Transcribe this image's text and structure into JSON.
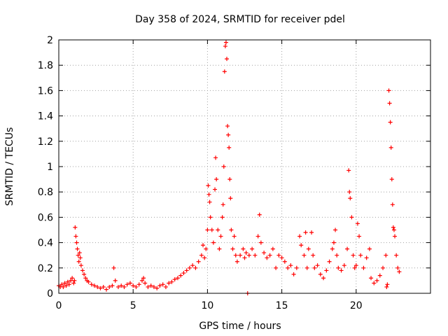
{
  "chart_data": {
    "type": "scatter",
    "title": "Day 358 of 2024, SRMTID for receiver pdel",
    "xlabel": "GPS time / hours",
    "ylabel": "SRMTID / TECUs",
    "xlim": [
      0,
      25
    ],
    "ylim": [
      0,
      2
    ],
    "xticks": [
      0,
      5,
      10,
      15,
      20
    ],
    "xtick_labels": [
      "0",
      "5",
      "10",
      "15",
      "20"
    ],
    "yticks": [
      0,
      0.2,
      0.4,
      0.6,
      0.8,
      1,
      1.2,
      1.4,
      1.6,
      1.8,
      2
    ],
    "ytick_labels": [
      "0",
      "0.2",
      "0.4",
      "0.6",
      "0.8",
      "1",
      "1.2",
      "1.4",
      "1.6",
      "1.8",
      "2"
    ],
    "grid": true,
    "marker": "+",
    "color": "#ff0000",
    "series": [
      {
        "name": "SRMTID",
        "points": [
          [
            0.0,
            0.06
          ],
          [
            0.1,
            0.05
          ],
          [
            0.2,
            0.07
          ],
          [
            0.3,
            0.05
          ],
          [
            0.4,
            0.08
          ],
          [
            0.5,
            0.06
          ],
          [
            0.6,
            0.09
          ],
          [
            0.7,
            0.07
          ],
          [
            0.8,
            0.1
          ],
          [
            0.9,
            0.12
          ],
          [
            1.0,
            0.08
          ],
          [
            1.05,
            0.1
          ],
          [
            1.1,
            0.52
          ],
          [
            1.15,
            0.45
          ],
          [
            1.2,
            0.4
          ],
          [
            1.25,
            0.35
          ],
          [
            1.3,
            0.3
          ],
          [
            1.35,
            0.25
          ],
          [
            1.4,
            0.32
          ],
          [
            1.45,
            0.28
          ],
          [
            1.5,
            0.22
          ],
          [
            1.6,
            0.18
          ],
          [
            1.7,
            0.15
          ],
          [
            1.8,
            0.12
          ],
          [
            1.9,
            0.1
          ],
          [
            2.0,
            0.09
          ],
          [
            2.2,
            0.07
          ],
          [
            2.4,
            0.06
          ],
          [
            2.6,
            0.05
          ],
          [
            2.8,
            0.04
          ],
          [
            3.0,
            0.05
          ],
          [
            3.2,
            0.03
          ],
          [
            3.4,
            0.05
          ],
          [
            3.6,
            0.06
          ],
          [
            3.7,
            0.2
          ],
          [
            3.8,
            0.1
          ],
          [
            4.0,
            0.05
          ],
          [
            4.2,
            0.06
          ],
          [
            4.4,
            0.05
          ],
          [
            4.6,
            0.07
          ],
          [
            4.8,
            0.08
          ],
          [
            5.0,
            0.06
          ],
          [
            5.2,
            0.05
          ],
          [
            5.4,
            0.07
          ],
          [
            5.6,
            0.1
          ],
          [
            5.7,
            0.12
          ],
          [
            5.8,
            0.08
          ],
          [
            6.0,
            0.05
          ],
          [
            6.2,
            0.06
          ],
          [
            6.4,
            0.05
          ],
          [
            6.6,
            0.04
          ],
          [
            6.8,
            0.06
          ],
          [
            7.0,
            0.07
          ],
          [
            7.2,
            0.05
          ],
          [
            7.4,
            0.08
          ],
          [
            7.6,
            0.09
          ],
          [
            7.8,
            0.11
          ],
          [
            8.0,
            0.12
          ],
          [
            8.2,
            0.14
          ],
          [
            8.4,
            0.16
          ],
          [
            8.6,
            0.18
          ],
          [
            8.8,
            0.2
          ],
          [
            9.0,
            0.22
          ],
          [
            9.2,
            0.2
          ],
          [
            9.4,
            0.25
          ],
          [
            9.6,
            0.3
          ],
          [
            9.7,
            0.38
          ],
          [
            9.8,
            0.28
          ],
          [
            9.9,
            0.35
          ],
          [
            10.0,
            0.5
          ],
          [
            10.05,
            0.85
          ],
          [
            10.1,
            0.78
          ],
          [
            10.15,
            0.72
          ],
          [
            10.2,
            0.6
          ],
          [
            10.3,
            0.5
          ],
          [
            10.4,
            0.4
          ],
          [
            10.5,
            0.82
          ],
          [
            10.55,
            1.07
          ],
          [
            10.6,
            0.9
          ],
          [
            10.7,
            0.5
          ],
          [
            10.8,
            0.35
          ],
          [
            10.9,
            0.45
          ],
          [
            11.0,
            0.6
          ],
          [
            11.05,
            0.7
          ],
          [
            11.1,
            1.0
          ],
          [
            11.15,
            1.75
          ],
          [
            11.2,
            1.95
          ],
          [
            11.25,
            1.98
          ],
          [
            11.3,
            1.85
          ],
          [
            11.35,
            1.32
          ],
          [
            11.4,
            1.25
          ],
          [
            11.45,
            1.15
          ],
          [
            11.5,
            0.9
          ],
          [
            11.55,
            0.75
          ],
          [
            11.6,
            0.5
          ],
          [
            11.7,
            0.35
          ],
          [
            11.8,
            0.45
          ],
          [
            11.9,
            0.3
          ],
          [
            12.0,
            0.25
          ],
          [
            12.2,
            0.3
          ],
          [
            12.4,
            0.35
          ],
          [
            12.5,
            0.28
          ],
          [
            12.6,
            0.32
          ],
          [
            12.7,
            0.0
          ],
          [
            12.8,
            0.3
          ],
          [
            13.0,
            0.35
          ],
          [
            13.2,
            0.3
          ],
          [
            13.4,
            0.45
          ],
          [
            13.5,
            0.62
          ],
          [
            13.6,
            0.4
          ],
          [
            13.8,
            0.32
          ],
          [
            14.0,
            0.28
          ],
          [
            14.2,
            0.3
          ],
          [
            14.4,
            0.35
          ],
          [
            14.6,
            0.2
          ],
          [
            14.8,
            0.3
          ],
          [
            15.0,
            0.28
          ],
          [
            15.2,
            0.25
          ],
          [
            15.4,
            0.2
          ],
          [
            15.6,
            0.22
          ],
          [
            15.8,
            0.15
          ],
          [
            16.0,
            0.2
          ],
          [
            16.2,
            0.45
          ],
          [
            16.3,
            0.38
          ],
          [
            16.5,
            0.3
          ],
          [
            16.6,
            0.48
          ],
          [
            16.7,
            0.2
          ],
          [
            16.8,
            0.35
          ],
          [
            17.0,
            0.48
          ],
          [
            17.1,
            0.3
          ],
          [
            17.2,
            0.2
          ],
          [
            17.4,
            0.22
          ],
          [
            17.6,
            0.15
          ],
          [
            17.8,
            0.12
          ],
          [
            18.0,
            0.18
          ],
          [
            18.2,
            0.25
          ],
          [
            18.4,
            0.35
          ],
          [
            18.5,
            0.4
          ],
          [
            18.6,
            0.5
          ],
          [
            18.7,
            0.3
          ],
          [
            18.8,
            0.2
          ],
          [
            19.0,
            0.18
          ],
          [
            19.2,
            0.22
          ],
          [
            19.4,
            0.35
          ],
          [
            19.5,
            0.97
          ],
          [
            19.55,
            0.8
          ],
          [
            19.6,
            0.75
          ],
          [
            19.7,
            0.6
          ],
          [
            19.8,
            0.3
          ],
          [
            19.9,
            0.2
          ],
          [
            20.0,
            0.22
          ],
          [
            20.1,
            0.55
          ],
          [
            20.2,
            0.45
          ],
          [
            20.3,
            0.3
          ],
          [
            20.5,
            0.2
          ],
          [
            20.7,
            0.28
          ],
          [
            20.9,
            0.35
          ],
          [
            21.0,
            0.12
          ],
          [
            21.2,
            0.08
          ],
          [
            21.4,
            0.1
          ],
          [
            21.6,
            0.14
          ],
          [
            21.8,
            0.2
          ],
          [
            22.0,
            0.3
          ],
          [
            22.05,
            0.05
          ],
          [
            22.1,
            0.07
          ],
          [
            22.2,
            1.6
          ],
          [
            22.25,
            1.5
          ],
          [
            22.3,
            1.35
          ],
          [
            22.35,
            1.15
          ],
          [
            22.4,
            0.9
          ],
          [
            22.45,
            0.7
          ],
          [
            22.5,
            0.52
          ],
          [
            22.55,
            0.5
          ],
          [
            22.6,
            0.45
          ],
          [
            22.7,
            0.3
          ],
          [
            22.8,
            0.2
          ],
          [
            22.9,
            0.17
          ]
        ]
      }
    ]
  }
}
